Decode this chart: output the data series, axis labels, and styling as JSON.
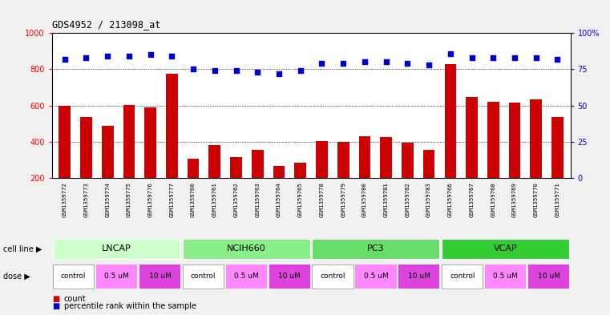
{
  "title": "GDS4952 / 213098_at",
  "samples": [
    "GSM1359772",
    "GSM1359773",
    "GSM1359774",
    "GSM1359775",
    "GSM1359776",
    "GSM1359777",
    "GSM1359760",
    "GSM1359761",
    "GSM1359762",
    "GSM1359763",
    "GSM1359764",
    "GSM1359765",
    "GSM1359778",
    "GSM1359779",
    "GSM1359780",
    "GSM1359781",
    "GSM1359782",
    "GSM1359783",
    "GSM1359766",
    "GSM1359767",
    "GSM1359768",
    "GSM1359769",
    "GSM1359770",
    "GSM1359771"
  ],
  "counts": [
    600,
    535,
    487,
    602,
    590,
    775,
    305,
    380,
    315,
    355,
    265,
    285,
    405,
    400,
    430,
    425,
    395,
    355,
    830,
    648,
    620,
    618,
    635,
    535
  ],
  "percentile": [
    82,
    83,
    84,
    84,
    85,
    84,
    75,
    74,
    74,
    73,
    72,
    74,
    79,
    79,
    80,
    80,
    79,
    78,
    86,
    83,
    83,
    83,
    83,
    82
  ],
  "cell_line_groups": [
    {
      "name": "LNCAP",
      "start": 0,
      "end": 6,
      "color": "#ccffcc"
    },
    {
      "name": "NCIH660",
      "start": 6,
      "end": 12,
      "color": "#88ee88"
    },
    {
      "name": "PC3",
      "start": 12,
      "end": 18,
      "color": "#66dd66"
    },
    {
      "name": "VCAP",
      "start": 18,
      "end": 24,
      "color": "#33cc33"
    }
  ],
  "dose_groups": [
    {
      "label": "control",
      "start": 0,
      "end": 2,
      "color": "#ffffff"
    },
    {
      "label": "0.5 uM",
      "start": 2,
      "end": 4,
      "color": "#ff88ff"
    },
    {
      "label": "10 uM",
      "start": 4,
      "end": 6,
      "color": "#dd44dd"
    },
    {
      "label": "control",
      "start": 6,
      "end": 8,
      "color": "#ffffff"
    },
    {
      "label": "0.5 uM",
      "start": 8,
      "end": 10,
      "color": "#ff88ff"
    },
    {
      "label": "10 uM",
      "start": 10,
      "end": 12,
      "color": "#dd44dd"
    },
    {
      "label": "control",
      "start": 12,
      "end": 14,
      "color": "#ffffff"
    },
    {
      "label": "0.5 uM",
      "start": 14,
      "end": 16,
      "color": "#ff88ff"
    },
    {
      "label": "10 uM",
      "start": 16,
      "end": 18,
      "color": "#dd44dd"
    },
    {
      "label": "control",
      "start": 18,
      "end": 20,
      "color": "#ffffff"
    },
    {
      "label": "0.5 uM",
      "start": 20,
      "end": 22,
      "color": "#ff88ff"
    },
    {
      "label": "10 uM",
      "start": 22,
      "end": 24,
      "color": "#dd44dd"
    }
  ],
  "bar_color": "#cc0000",
  "dot_color": "#0000cc",
  "ylim_left": [
    200,
    1000
  ],
  "ylim_right": [
    0,
    100
  ],
  "yticks_left": [
    200,
    400,
    600,
    800,
    1000
  ],
  "yticks_right": [
    0,
    25,
    50,
    75,
    100
  ],
  "grid_values": [
    400,
    600,
    800
  ],
  "sample_bg": "#c8c8c8",
  "plot_bg": "#ffffff",
  "fig_bg": "#f0f0f0",
  "legend_count_color": "#cc0000",
  "legend_dot_color": "#0000cc"
}
